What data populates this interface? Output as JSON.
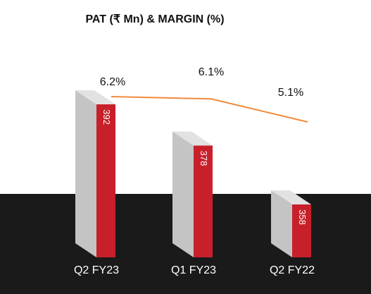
{
  "chart_data": {
    "type": "bar",
    "title": "PAT (₹ Mn) & MARGIN (%)",
    "categories": [
      "Q2 FY23",
      "Q1 FY23",
      "Q2 FY22"
    ],
    "series": [
      {
        "name": "PAT",
        "color": "#c8202a",
        "values": [
          392,
          378,
          358
        ]
      },
      {
        "name": "MARGIN",
        "color": "#f08a3c",
        "values": [
          6.2,
          6.1,
          5.1
        ],
        "value_labels": [
          "6.2%",
          "6.1%",
          "5.1%"
        ]
      }
    ]
  }
}
